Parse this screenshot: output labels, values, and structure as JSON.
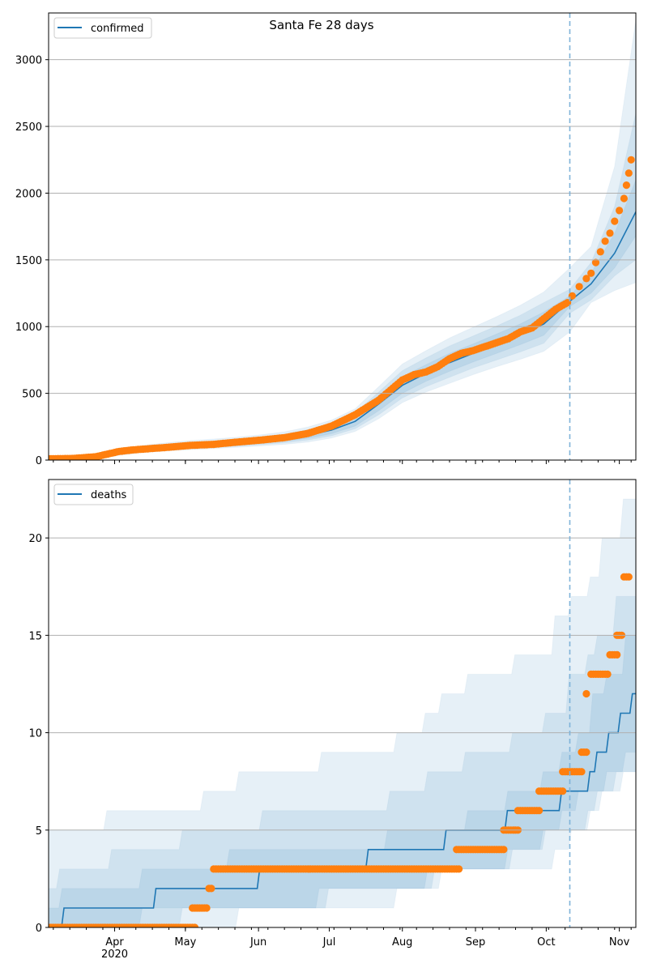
{
  "figure_title": "Santa Fe 28 days",
  "colors": {
    "model": "#1f77b4",
    "observed": "#ff7f0e",
    "band": "#1f77b4",
    "grid": "#b0b0b0",
    "vline": "#7fb3d9"
  },
  "x_axis": {
    "start_date": "2020-03-04",
    "end_day": 249,
    "forecast_start_day": 221,
    "month_ticks": [
      {
        "label": "Apr",
        "day": 28
      },
      {
        "label": "May",
        "day": 58
      },
      {
        "label": "Jun",
        "day": 89
      },
      {
        "label": "Jul",
        "day": 119
      },
      {
        "label": "Aug",
        "day": 150
      },
      {
        "label": "Sep",
        "day": 181
      },
      {
        "label": "Oct",
        "day": 211
      },
      {
        "label": "Nov",
        "day": 242
      }
    ],
    "year_label": "2020"
  },
  "chart_data": [
    {
      "type": "line",
      "title": "Santa Fe 28 days",
      "legend": [
        "confirmed"
      ],
      "legend_position": "top-left",
      "ylim": [
        0,
        3350
      ],
      "yticks": [
        0,
        500,
        1000,
        1500,
        2000,
        2500,
        3000
      ],
      "grid": true,
      "model_series": {
        "name": "confirmed",
        "days": [
          0,
          10,
          20,
          30,
          40,
          50,
          60,
          70,
          80,
          90,
          100,
          110,
          120,
          130,
          140,
          150,
          160,
          170,
          180,
          190,
          200,
          210,
          221,
          230,
          240,
          249
        ],
        "median": [
          5,
          8,
          20,
          55,
          80,
          95,
          108,
          118,
          130,
          145,
          160,
          185,
          225,
          290,
          420,
          560,
          650,
          730,
          800,
          870,
          940,
          1020,
          1190,
          1320,
          1550,
          1860
        ],
        "band_inner": [
          [
            2,
            9
          ],
          [
            5,
            12
          ],
          [
            15,
            26
          ],
          [
            48,
            64
          ],
          [
            70,
            92
          ],
          [
            84,
            108
          ],
          [
            95,
            122
          ],
          [
            104,
            133
          ],
          [
            115,
            146
          ],
          [
            128,
            162
          ],
          [
            142,
            180
          ],
          [
            163,
            210
          ],
          [
            198,
            255
          ],
          [
            255,
            330
          ],
          [
            370,
            475
          ],
          [
            500,
            625
          ],
          [
            590,
            715
          ],
          [
            665,
            800
          ],
          [
            735,
            870
          ],
          [
            800,
            945
          ],
          [
            865,
            1020
          ],
          [
            935,
            1110
          ],
          [
            1150,
            1230
          ],
          [
            1250,
            1400
          ],
          [
            1440,
            1700
          ],
          [
            1680,
            2100
          ]
        ],
        "band_mid": [
          [
            0,
            12
          ],
          [
            3,
            15
          ],
          [
            12,
            30
          ],
          [
            42,
            70
          ],
          [
            64,
            100
          ],
          [
            76,
            118
          ],
          [
            86,
            132
          ],
          [
            95,
            144
          ],
          [
            105,
            158
          ],
          [
            117,
            175
          ],
          [
            130,
            195
          ],
          [
            150,
            228
          ],
          [
            182,
            275
          ],
          [
            235,
            355
          ],
          [
            340,
            510
          ],
          [
            465,
            670
          ],
          [
            550,
            765
          ],
          [
            620,
            855
          ],
          [
            690,
            930
          ],
          [
            750,
            1005
          ],
          [
            810,
            1085
          ],
          [
            875,
            1180
          ],
          [
            1100,
            1280
          ],
          [
            1200,
            1480
          ],
          [
            1380,
            1900
          ],
          [
            1500,
            2600
          ]
        ],
        "band_outer": [
          [
            0,
            15
          ],
          [
            1,
            18
          ],
          [
            8,
            35
          ],
          [
            36,
            78
          ],
          [
            56,
            110
          ],
          [
            68,
            130
          ],
          [
            78,
            146
          ],
          [
            86,
            158
          ],
          [
            95,
            172
          ],
          [
            106,
            190
          ],
          [
            118,
            212
          ],
          [
            135,
            248
          ],
          [
            165,
            300
          ],
          [
            215,
            385
          ],
          [
            310,
            550
          ],
          [
            430,
            720
          ],
          [
            510,
            820
          ],
          [
            575,
            915
          ],
          [
            640,
            995
          ],
          [
            700,
            1075
          ],
          [
            755,
            1160
          ],
          [
            815,
            1260
          ],
          [
            960,
            1440
          ],
          [
            1180,
            1600
          ],
          [
            1270,
            2200
          ],
          [
            1330,
            3300
          ]
        ]
      },
      "observed": {
        "name": "confirmed observed",
        "days": [
          0,
          10,
          20,
          25,
          30,
          35,
          40,
          50,
          60,
          70,
          80,
          90,
          100,
          110,
          120,
          130,
          140,
          150,
          155,
          160,
          165,
          170,
          175,
          180,
          185,
          190,
          195,
          200,
          205,
          210,
          215,
          220,
          222,
          225,
          228,
          230,
          232,
          234,
          236,
          238,
          240,
          242,
          244,
          245,
          246,
          247
        ],
        "values": [
          10,
          12,
          25,
          45,
          65,
          75,
          82,
          95,
          110,
          118,
          135,
          150,
          168,
          200,
          255,
          340,
          450,
          600,
          640,
          660,
          700,
          760,
          800,
          820,
          850,
          880,
          910,
          960,
          990,
          1060,
          1130,
          1180,
          1230,
          1300,
          1360,
          1400,
          1480,
          1560,
          1640,
          1700,
          1790,
          1870,
          1960,
          2060,
          2150,
          2250
        ]
      }
    },
    {
      "type": "line",
      "legend": [
        "deaths"
      ],
      "legend_position": "top-left",
      "ylim": [
        0,
        23
      ],
      "yticks": [
        0,
        5,
        10,
        15,
        20
      ],
      "grid": true,
      "model_series": {
        "name": "deaths",
        "step_days": [
          0,
          6,
          45,
          89,
          135,
          168,
          194,
          217,
          229,
          232,
          237,
          242,
          247
        ],
        "step_values": [
          0,
          1,
          2,
          3,
          4,
          5,
          6,
          7,
          8,
          9,
          10,
          11,
          12
        ],
        "band_inner": {
          "step_days": [
            0,
            5,
            39,
            76,
            114,
            143,
            163,
            177,
            194,
            209,
            217,
            224,
            230,
            236,
            244
          ],
          "low": [
            0,
            0,
            1,
            1,
            2,
            2,
            3,
            3,
            4,
            5,
            6,
            7,
            7,
            8,
            9
          ],
          "high": [
            1,
            2,
            3,
            4,
            4,
            5,
            5,
            6,
            7,
            8,
            9,
            10,
            12,
            13,
            15
          ]
        },
        "band_mid": {
          "step_days": [
            0,
            4,
            26,
            56,
            90,
            118,
            144,
            160,
            176,
            196,
            210,
            220,
            228,
            232,
            240
          ],
          "low": [
            0,
            0,
            0,
            1,
            1,
            2,
            2,
            3,
            3,
            4,
            5,
            5,
            6,
            7,
            8
          ],
          "high": [
            2,
            3,
            4,
            5,
            6,
            6,
            7,
            8,
            9,
            10,
            11,
            13,
            14,
            15,
            17
          ]
        },
        "band_outer": {
          "step_days": [
            0,
            3,
            24,
            45,
            65,
            80,
            115,
            147,
            159,
            166,
            177,
            197,
            214,
            221,
            229,
            234,
            243
          ],
          "low": [
            0,
            0,
            0,
            0,
            0,
            1,
            1,
            2,
            2,
            3,
            3,
            3,
            4,
            5,
            6,
            7,
            8
          ],
          "high": [
            5,
            5,
            6,
            6,
            7,
            8,
            9,
            10,
            11,
            12,
            13,
            14,
            16,
            17,
            18,
            20,
            22
          ]
        }
      },
      "observed": {
        "name": "deaths observed",
        "segments": [
          {
            "from": 0,
            "to": 62,
            "value": 0
          },
          {
            "from": 61,
            "to": 67,
            "value": 1
          },
          {
            "from": 68,
            "to": 69,
            "value": 2
          },
          {
            "from": 70,
            "to": 174,
            "value": 3
          },
          {
            "from": 173,
            "to": 193,
            "value": 4
          },
          {
            "from": 193,
            "to": 199,
            "value": 5
          },
          {
            "from": 199,
            "to": 208,
            "value": 6
          },
          {
            "from": 208,
            "to": 218,
            "value": 7
          },
          {
            "from": 218,
            "to": 226,
            "value": 8
          },
          {
            "from": 226,
            "to": 228,
            "value": 9
          },
          {
            "from": 228,
            "to": 228,
            "value": 12
          },
          {
            "from": 230,
            "to": 237,
            "value": 13
          },
          {
            "from": 238,
            "to": 241,
            "value": 14
          },
          {
            "from": 241,
            "to": 243,
            "value": 15
          },
          {
            "from": 244,
            "to": 246,
            "value": 18
          }
        ]
      }
    }
  ]
}
